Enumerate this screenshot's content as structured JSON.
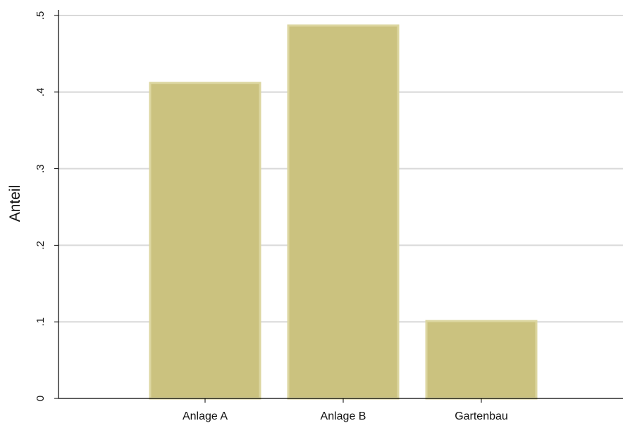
{
  "chart_data": {
    "type": "bar",
    "title": "",
    "xlabel": "",
    "ylabel": "Anteil",
    "categories": [
      "Anlage A",
      "Anlage B",
      "Gartenbau"
    ],
    "values": [
      0.412,
      0.487,
      0.101
    ],
    "ylim": [
      0,
      0.5
    ],
    "yticks": [
      0,
      0.1,
      0.2,
      0.3,
      0.4,
      0.5
    ],
    "ytick_labels": [
      "0",
      ".1",
      ".2",
      ".3",
      ".4",
      ".5"
    ],
    "grid": true,
    "legend": "none",
    "colors": {
      "bar_fill": "#cbc27f",
      "bar_edge": "#dcd6a0",
      "grid": "#d9d9d9",
      "axis": "#000000"
    }
  }
}
